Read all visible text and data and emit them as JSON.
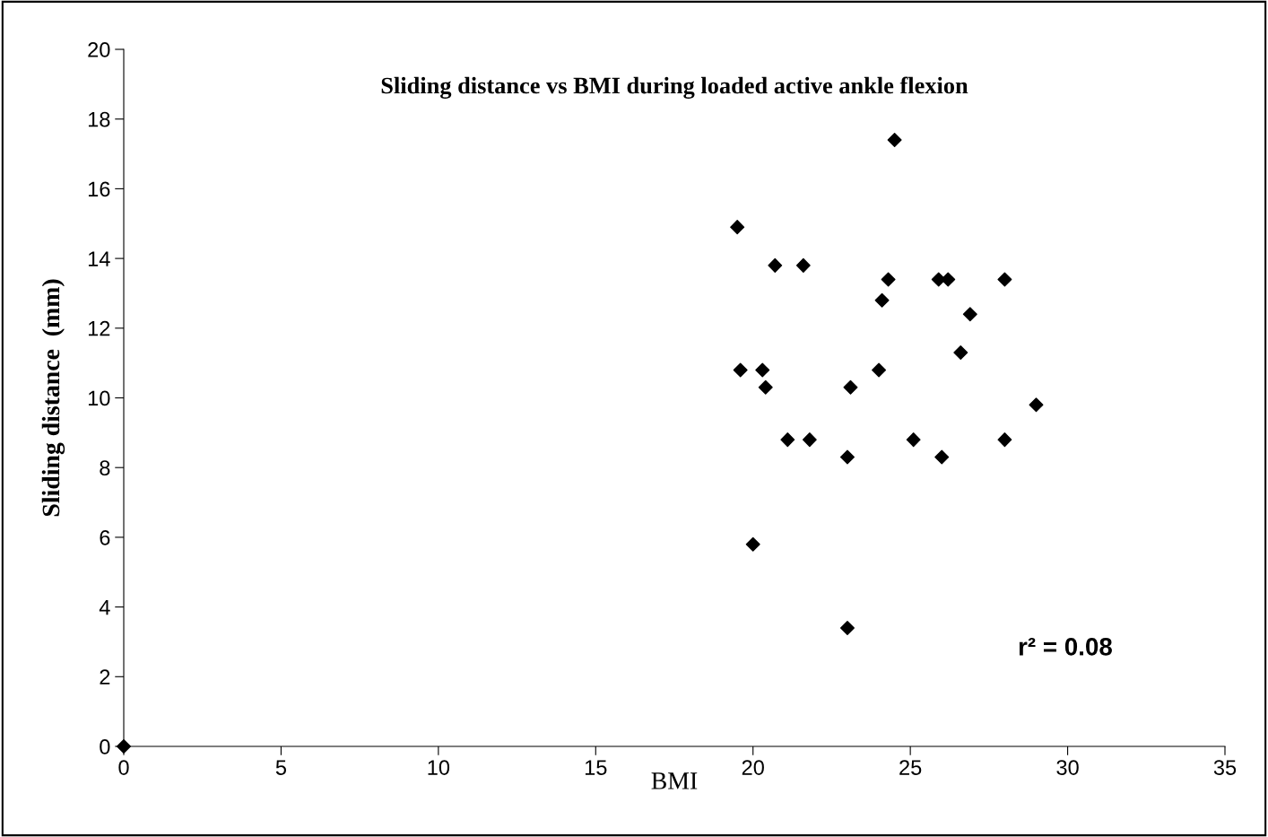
{
  "chart_data": {
    "type": "scatter",
    "title": "Sliding distance vs BMI during loaded active ankle flexion",
    "xlabel": "BMI",
    "ylabel": "Sliding distance  (mm)",
    "x": [
      0,
      19.5,
      19.6,
      20.3,
      20.4,
      20.0,
      20.7,
      21.1,
      21.6,
      21.8,
      23.0,
      23.1,
      23.0,
      24.5,
      24.0,
      24.1,
      24.3,
      25.1,
      25.9,
      26.2,
      26.0,
      26.6,
      26.9,
      28.0,
      28.0,
      29.0
    ],
    "values": [
      0,
      14.9,
      10.8,
      10.8,
      10.3,
      5.8,
      13.8,
      8.8,
      13.8,
      8.8,
      8.3,
      10.3,
      3.4,
      17.4,
      10.8,
      12.8,
      13.4,
      8.8,
      13.4,
      13.4,
      8.3,
      11.3,
      12.4,
      13.4,
      8.8,
      9.8
    ],
    "color": "#000000",
    "marker": "diamond",
    "xlim": [
      0,
      35
    ],
    "xticks": [
      0,
      5,
      10,
      15,
      20,
      25,
      30,
      35
    ],
    "ylim": [
      0,
      20
    ],
    "yticks": [
      0,
      2,
      4,
      6,
      8,
      10,
      12,
      14,
      16,
      18,
      20
    ],
    "grid": false,
    "legend": false,
    "annotations": [
      "r² = 0.08"
    ]
  }
}
